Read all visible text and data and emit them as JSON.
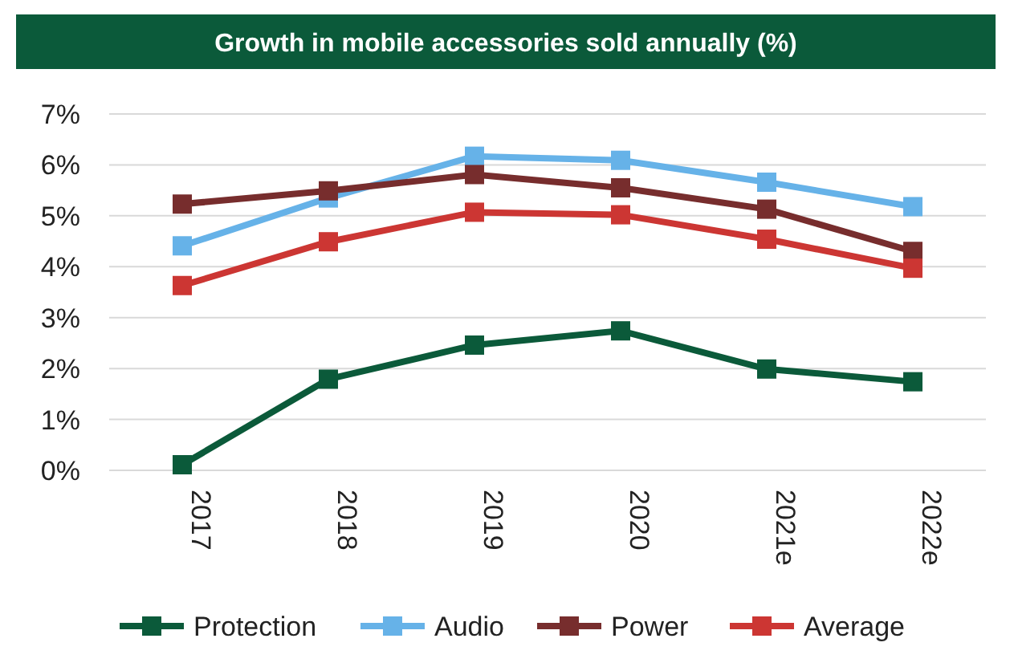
{
  "chart_data": {
    "type": "line",
    "title": "Growth in mobile accessories sold annually (%)",
    "categories": [
      "2017",
      "2018",
      "2019",
      "2020",
      "2021e",
      "2022e"
    ],
    "series": [
      {
        "name": "Protection",
        "color": "#0b5a3a",
        "values": [
          0.11,
          1.79,
          2.46,
          2.74,
          1.99,
          1.74
        ]
      },
      {
        "name": "Audio",
        "color": "#66b2e8",
        "values": [
          4.41,
          5.35,
          6.17,
          6.09,
          5.66,
          5.18
        ]
      },
      {
        "name": "Power",
        "color": "#772d2d",
        "values": [
          5.23,
          5.49,
          5.81,
          5.55,
          5.13,
          4.3
        ]
      },
      {
        "name": "Average",
        "color": "#cc3633",
        "values": [
          3.63,
          4.49,
          5.07,
          5.02,
          4.54,
          3.97
        ]
      }
    ],
    "ylim": [
      0,
      7
    ],
    "yticks": [
      {
        "value": 0,
        "label": "0%"
      },
      {
        "value": 1,
        "label": "1%"
      },
      {
        "value": 2,
        "label": "2%"
      },
      {
        "value": 3,
        "label": "3%"
      },
      {
        "value": 4,
        "label": "4%"
      },
      {
        "value": 5,
        "label": "5%"
      },
      {
        "value": 6,
        "label": "6%"
      },
      {
        "value": 7,
        "label": "7%"
      }
    ],
    "grid": "y",
    "legend": "bottom",
    "marker": "square",
    "line_style": "solid"
  }
}
